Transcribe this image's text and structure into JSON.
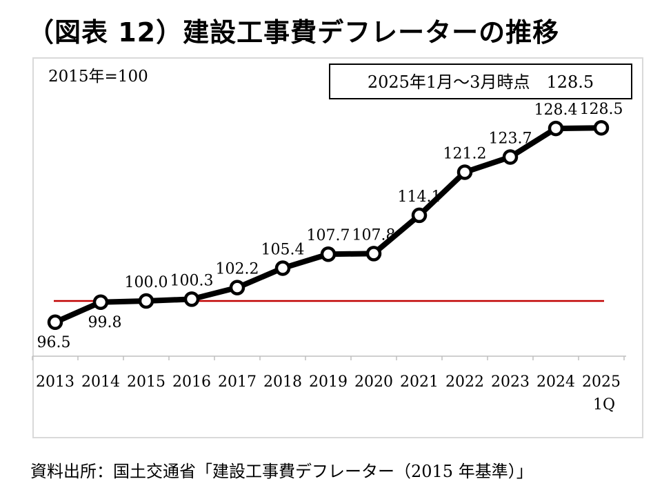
{
  "title": "（図表 12）建設工事費デフレーターの推移",
  "source": "資料出所：国土交通省「建設工事費デフレーター（2015 年基準）」",
  "chart_data": {
    "type": "line",
    "base_note": "2015年=100",
    "callout": "2025年1月～3月時点　128.5",
    "categories": [
      "2013",
      "2014",
      "2015",
      "2016",
      "2017",
      "2018",
      "2019",
      "2020",
      "2021",
      "2022",
      "2023",
      "2024",
      "2025\n1Q"
    ],
    "values": [
      96.5,
      99.8,
      100.0,
      100.3,
      102.2,
      105.4,
      107.7,
      107.8,
      114.1,
      121.2,
      123.7,
      128.4,
      128.5
    ],
    "data_labels": [
      "96.5",
      "99.8",
      "100.0",
      "100.3",
      "102.2",
      "105.4",
      "107.7",
      "107.8",
      "114.1",
      "121.2",
      "123.7",
      "128.4",
      "128.5"
    ],
    "reference_line": 100,
    "colors": {
      "line": "#000000",
      "reference": "#c00000",
      "marker_fill": "#ffffff"
    },
    "legend": "none",
    "grid": false
  }
}
